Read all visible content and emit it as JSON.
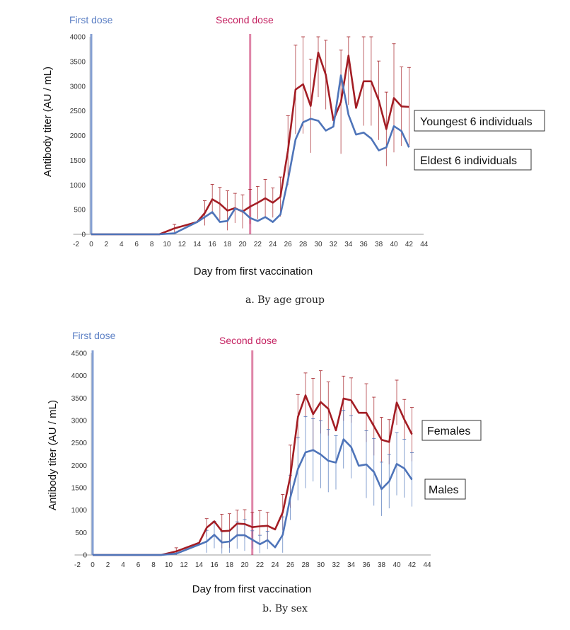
{
  "chart_data": [
    {
      "type": "line",
      "caption": "a.  By age group",
      "xlabel": "Day from first vaccination",
      "ylabel": "Antibody titer (AU / mL)",
      "xlim": [
        -2,
        44
      ],
      "ylim": [
        0,
        4000
      ],
      "xticks": [
        -2,
        0,
        2,
        4,
        6,
        8,
        10,
        12,
        14,
        16,
        18,
        20,
        22,
        24,
        26,
        28,
        30,
        32,
        34,
        36,
        38,
        40,
        42,
        44
      ],
      "yticks": [
        0,
        500,
        1000,
        1500,
        2000,
        2500,
        3000,
        3500,
        4000
      ],
      "markers": [
        {
          "label": "First dose",
          "x": 0,
          "color": "#5b7fc4"
        },
        {
          "label": "Second dose",
          "x": 21,
          "color": "#c42060"
        }
      ],
      "series": [
        {
          "name": "Youngest 6 individuals",
          "color": "#a31d24",
          "x": [
            0,
            1,
            2,
            3,
            4,
            5,
            6,
            7,
            8,
            9,
            11,
            14,
            15,
            16,
            17,
            18,
            19,
            20,
            21,
            22,
            23,
            24,
            25,
            26,
            27,
            28,
            29,
            30,
            31,
            32,
            33,
            34,
            35,
            36,
            37,
            38,
            39,
            40,
            41,
            42
          ],
          "values": [
            0,
            0,
            0,
            0,
            0,
            0,
            0,
            0,
            0,
            0,
            120,
            250,
            430,
            710,
            620,
            480,
            530,
            460,
            560,
            640,
            730,
            640,
            760,
            1700,
            2930,
            3040,
            2600,
            3680,
            3230,
            2310,
            2680,
            3620,
            2560,
            3100,
            3100,
            2710,
            2130,
            2760,
            2590,
            2580
          ],
          "errors": [
            0,
            0,
            0,
            0,
            0,
            0,
            0,
            0,
            0,
            0,
            80,
            0,
            250,
            300,
            330,
            400,
            300,
            340,
            350,
            330,
            380,
            300,
            400,
            700,
            900,
            1000,
            950,
            900,
            700,
            0,
            1050,
            1000,
            0,
            900,
            900,
            800,
            750,
            1100,
            800,
            800
          ]
        },
        {
          "name": "Eldest 6 individuals",
          "color": "#4e74b9",
          "x": [
            0,
            1,
            2,
            3,
            4,
            5,
            6,
            7,
            8,
            9,
            11,
            14,
            15,
            16,
            17,
            18,
            19,
            20,
            21,
            22,
            23,
            24,
            25,
            26,
            27,
            28,
            29,
            30,
            31,
            32,
            33,
            34,
            35,
            36,
            37,
            38,
            39,
            40,
            41,
            42
          ],
          "values": [
            0,
            0,
            0,
            0,
            0,
            0,
            0,
            0,
            0,
            0,
            20,
            250,
            350,
            450,
            250,
            270,
            520,
            470,
            330,
            270,
            350,
            250,
            400,
            1100,
            1920,
            2270,
            2340,
            2300,
            2100,
            2180,
            3220,
            2420,
            2020,
            2060,
            1940,
            1700,
            1760,
            2190,
            2090,
            1760
          ]
        }
      ],
      "legend": [
        "Youngest 6 individuals",
        "Eldest 6 individuals"
      ]
    },
    {
      "type": "line",
      "caption": "b.  By sex",
      "xlabel": "Day from first vaccination",
      "ylabel": "Antibody titer (AU / mL)",
      "xlim": [
        -2,
        44
      ],
      "ylim": [
        0,
        4500
      ],
      "xticks": [
        -2,
        0,
        2,
        4,
        6,
        8,
        10,
        12,
        14,
        16,
        18,
        20,
        22,
        24,
        26,
        28,
        30,
        32,
        34,
        36,
        38,
        40,
        42,
        44
      ],
      "yticks": [
        0,
        500,
        1000,
        1500,
        2000,
        2500,
        3000,
        3500,
        4000,
        4500
      ],
      "markers": [
        {
          "label": "First dose",
          "x": 0,
          "color": "#5b7fc4"
        },
        {
          "label": "Second dose",
          "x": 21,
          "color": "#c42060"
        }
      ],
      "series": [
        {
          "name": "Females",
          "color": "#a31d24",
          "x": [
            0,
            1,
            2,
            3,
            4,
            5,
            6,
            7,
            8,
            9,
            11,
            14,
            15,
            16,
            17,
            18,
            19,
            20,
            21,
            22,
            23,
            24,
            25,
            26,
            27,
            28,
            29,
            30,
            31,
            32,
            33,
            34,
            35,
            36,
            37,
            38,
            39,
            40,
            41,
            42
          ],
          "values": [
            0,
            0,
            0,
            0,
            0,
            0,
            0,
            0,
            0,
            0,
            80,
            270,
            610,
            750,
            530,
            540,
            700,
            690,
            620,
            640,
            650,
            570,
            950,
            1750,
            3080,
            3560,
            3140,
            3410,
            3260,
            2780,
            3490,
            3450,
            3170,
            3170,
            2870,
            2570,
            2520,
            3400,
            3020,
            2690
          ],
          "errors": [
            0,
            0,
            0,
            0,
            0,
            0,
            0,
            0,
            0,
            0,
            80,
            0,
            200,
            0,
            380,
            380,
            300,
            320,
            330,
            350,
            300,
            0,
            400,
            700,
            500,
            500,
            800,
            700,
            600,
            0,
            500,
            500,
            0,
            650,
            650,
            500,
            500,
            500,
            450,
            600
          ]
        },
        {
          "name": "Males",
          "color": "#4e74b9",
          "x": [
            0,
            1,
            2,
            3,
            4,
            5,
            6,
            7,
            8,
            9,
            11,
            14,
            15,
            16,
            17,
            18,
            19,
            20,
            21,
            22,
            23,
            24,
            25,
            26,
            27,
            28,
            29,
            30,
            31,
            32,
            33,
            34,
            35,
            36,
            37,
            38,
            39,
            40,
            41,
            42
          ],
          "values": [
            0,
            0,
            0,
            0,
            0,
            0,
            0,
            0,
            0,
            0,
            30,
            230,
            300,
            450,
            280,
            300,
            440,
            440,
            340,
            240,
            330,
            170,
            450,
            1280,
            1920,
            2290,
            2340,
            2240,
            2100,
            2060,
            2580,
            2410,
            1990,
            2020,
            1850,
            1470,
            1640,
            2030,
            1930,
            1680
          ],
          "errors": [
            0,
            0,
            0,
            0,
            0,
            0,
            0,
            0,
            0,
            0,
            50,
            0,
            250,
            300,
            250,
            250,
            300,
            350,
            200,
            200,
            200,
            0,
            400,
            500,
            700,
            800,
            700,
            750,
            700,
            600,
            650,
            700,
            0,
            750,
            750,
            600,
            600,
            700,
            650,
            600
          ]
        }
      ],
      "legend": [
        "Females",
        "Males"
      ]
    }
  ]
}
